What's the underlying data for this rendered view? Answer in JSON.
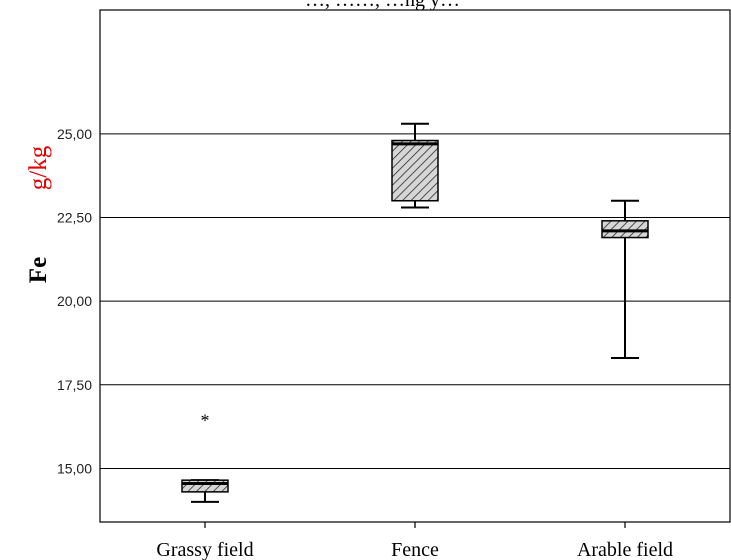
{
  "header_fragment": "…, ……, …ng y…",
  "colors": {
    "ylabel_unit": "#e00000",
    "box_fill": "#bdbdbd",
    "stroke": "#000000"
  },
  "chart_data": {
    "type": "boxplot",
    "ylabel_parts": [
      "Fe",
      "g/kg"
    ],
    "ylim": [
      13.4,
      28.7
    ],
    "yticks": [
      15,
      17.5,
      20,
      22.5,
      25
    ],
    "ytick_labels": [
      "15,00",
      "17,50",
      "20,00",
      "22,50",
      "25,00"
    ],
    "grid": "horizontal",
    "categories": [
      "Grassy field",
      "Fence",
      "Arable field"
    ],
    "boxes": [
      {
        "category": "Grassy field",
        "whisker_low": 14.0,
        "q1": 14.3,
        "median": 14.55,
        "q3": 14.65,
        "whisker_high": 14.65,
        "outliers": [
          16.5
        ]
      },
      {
        "category": "Fence",
        "whisker_low": 22.8,
        "q1": 23.0,
        "median": 24.7,
        "q3": 24.8,
        "whisker_high": 25.3,
        "outliers": []
      },
      {
        "category": "Arable field",
        "whisker_low": 18.3,
        "q1": 21.9,
        "median": 22.1,
        "q3": 22.4,
        "whisker_high": 23.0,
        "outliers": []
      }
    ]
  }
}
